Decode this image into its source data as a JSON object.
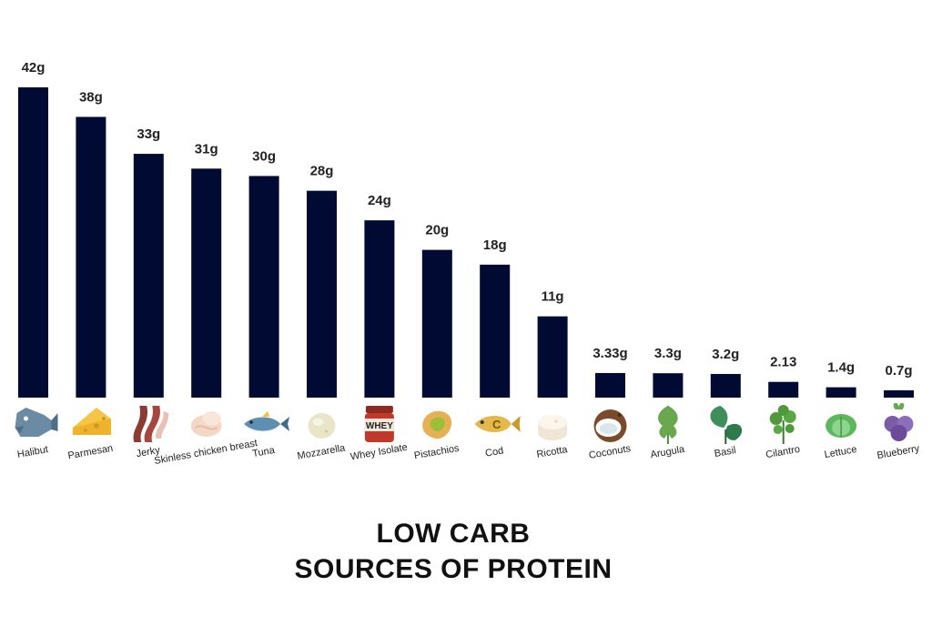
{
  "chart_data": {
    "type": "bar",
    "title_lines": [
      "LOW CARB",
      "SOURCES OF PROTEIN"
    ],
    "xlabel": "",
    "ylabel": "",
    "ylim": [
      0,
      42
    ],
    "grid": false,
    "bar_color": "#000a33",
    "categories": [
      "Halibut",
      "Parmesan",
      "Jerky",
      "Skinless chicken breast",
      "Tuna",
      "Mozzarella",
      "Whey Isolate",
      "Pistachios",
      "Cod",
      "Ricotta",
      "Coconuts",
      "Arugula",
      "Basil",
      "Cilantro",
      "Lettuce",
      "Blueberry"
    ],
    "values": [
      42,
      38,
      33,
      31,
      30,
      28,
      24,
      20,
      18,
      11,
      3.33,
      3.3,
      3.2,
      2.13,
      1.4,
      0.7
    ],
    "value_labels": [
      "42g",
      "38g",
      "33g",
      "31g",
      "30g",
      "28g",
      "24g",
      "20g",
      "18g",
      "11g",
      "3.33g",
      "3.3g",
      "3.2g",
      "2.13",
      "1.4g",
      "0.7g"
    ],
    "icons": [
      "halibut-icon",
      "parmesan-icon",
      "jerky-icon",
      "chicken-breast-icon",
      "tuna-icon",
      "mozzarella-icon",
      "whey-jar-icon",
      "pistachio-icon",
      "cod-icon",
      "ricotta-icon",
      "coconut-icon",
      "arugula-icon",
      "basil-icon",
      "cilantro-icon",
      "lettuce-icon",
      "blueberry-icon"
    ],
    "icon_texts": {
      "whey": "WHEY",
      "cod": "C"
    }
  }
}
